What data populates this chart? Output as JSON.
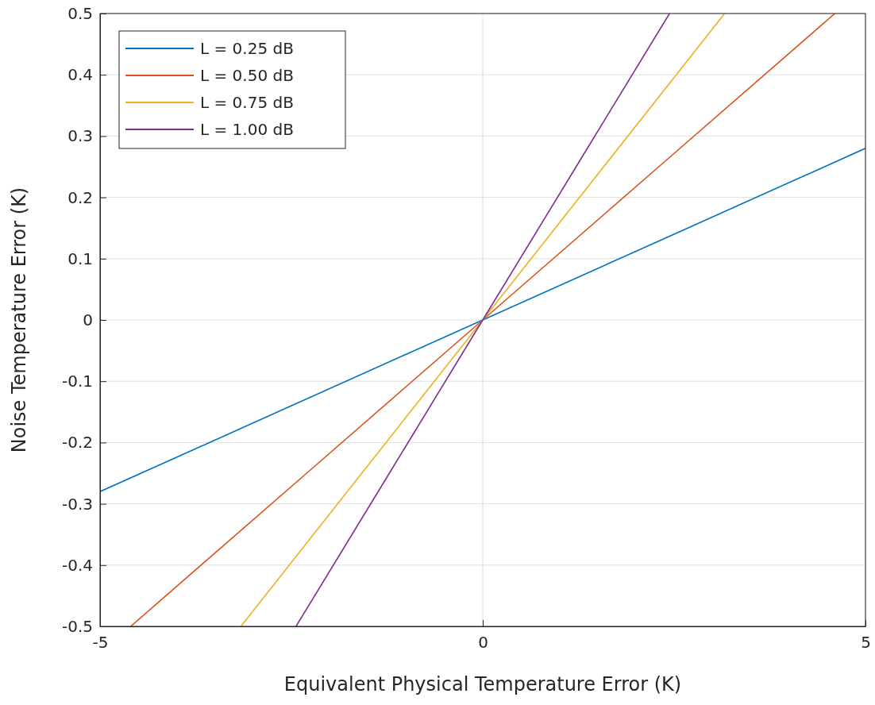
{
  "chart_data": {
    "type": "line",
    "xlabel": "Equivalent Physical Temperature Error (K)",
    "ylabel": "Noise Temperature Error (K)",
    "xlim": [
      -5,
      5
    ],
    "xticks": [
      -5,
      0,
      5
    ],
    "ylim": [
      -0.5,
      0.5
    ],
    "yticks": [
      -0.5,
      -0.4,
      -0.3,
      -0.2,
      -0.1,
      0,
      0.1,
      0.2,
      0.3,
      0.4,
      0.5
    ],
    "grid": true,
    "legend": "top left",
    "marker": "none",
    "line_style": "solid",
    "series": [
      {
        "name": "L = 0.25 dB",
        "color": "#0072bd",
        "x": [
          -5,
          -2.5,
          0,
          2.5,
          5
        ],
        "values": [
          -0.28,
          -0.14,
          0,
          0.14,
          0.28
        ]
      },
      {
        "name": "L = 0.50 dB",
        "color": "#d95319",
        "x": [
          -4.6,
          -2.3,
          0,
          2.3,
          4.6
        ],
        "values": [
          -0.5,
          -0.25,
          0,
          0.25,
          0.5
        ]
      },
      {
        "name": "L = 0.75 dB",
        "color": "#edb120",
        "x": [
          -3.16,
          -1.58,
          0,
          1.58,
          3.16
        ],
        "values": [
          -0.5,
          -0.25,
          0,
          0.25,
          0.5
        ]
      },
      {
        "name": "L = 1.00 dB",
        "color": "#7e2f8e",
        "x": [
          -2.44,
          -1.22,
          0,
          1.22,
          2.44
        ],
        "values": [
          -0.5,
          -0.25,
          0,
          0.25,
          0.5
        ]
      }
    ]
  }
}
